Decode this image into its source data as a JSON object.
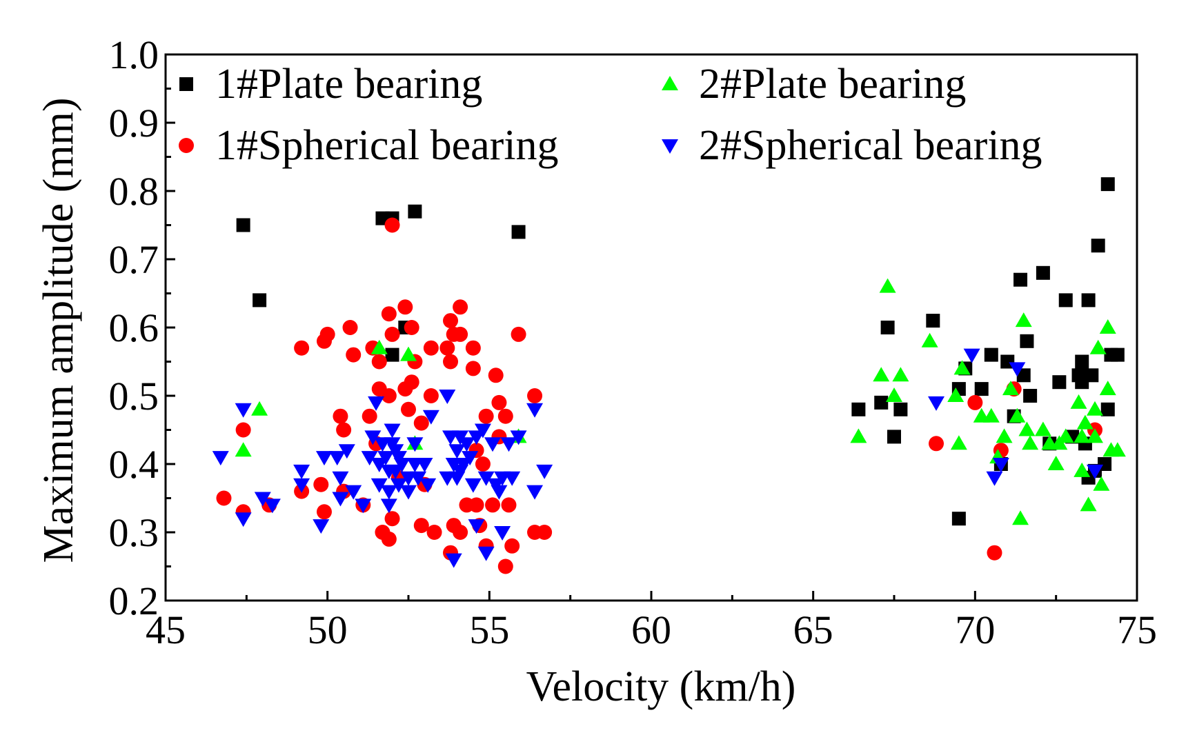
{
  "chart_data": {
    "type": "scatter",
    "title": "",
    "xlabel": "Velocity (km/h)",
    "ylabel": "Maximum amplitude (mm)",
    "xlim": [
      45,
      75
    ],
    "ylim": [
      0.2,
      1.0
    ],
    "xticks": [
      "45",
      "50",
      "55",
      "60",
      "65",
      "70",
      "75"
    ],
    "yticks": [
      "0.2",
      "0.3",
      "0.4",
      "0.5",
      "0.6",
      "0.7",
      "0.8",
      "0.9",
      "1.0"
    ],
    "grid": false,
    "legend_position": "top",
    "series": [
      {
        "name": "1#Plate bearing",
        "marker": "square",
        "color": "#000000",
        "points": [
          [
            47.4,
            0.75
          ],
          [
            47.9,
            0.64
          ],
          [
            51.7,
            0.76
          ],
          [
            52.0,
            0.76
          ],
          [
            52.7,
            0.77
          ],
          [
            55.9,
            0.74
          ],
          [
            52.4,
            0.6
          ],
          [
            52.0,
            0.56
          ],
          [
            66.4,
            0.48
          ],
          [
            67.1,
            0.49
          ],
          [
            67.3,
            0.6
          ],
          [
            67.5,
            0.44
          ],
          [
            67.7,
            0.48
          ],
          [
            68.7,
            0.61
          ],
          [
            69.5,
            0.32
          ],
          [
            69.5,
            0.51
          ],
          [
            69.7,
            0.54
          ],
          [
            70.2,
            0.51
          ],
          [
            70.5,
            0.56
          ],
          [
            70.8,
            0.4
          ],
          [
            71.0,
            0.55
          ],
          [
            71.2,
            0.47
          ],
          [
            71.4,
            0.67
          ],
          [
            71.5,
            0.53
          ],
          [
            71.6,
            0.58
          ],
          [
            71.7,
            0.5
          ],
          [
            72.1,
            0.68
          ],
          [
            72.3,
            0.43
          ],
          [
            72.6,
            0.52
          ],
          [
            72.8,
            0.64
          ],
          [
            73.0,
            0.44
          ],
          [
            73.2,
            0.53
          ],
          [
            73.3,
            0.55
          ],
          [
            73.3,
            0.52
          ],
          [
            73.4,
            0.43
          ],
          [
            73.5,
            0.64
          ],
          [
            73.5,
            0.38
          ],
          [
            73.6,
            0.53
          ],
          [
            73.7,
            0.39
          ],
          [
            73.8,
            0.72
          ],
          [
            74.0,
            0.4
          ],
          [
            74.1,
            0.81
          ],
          [
            74.1,
            0.48
          ],
          [
            74.2,
            0.56
          ],
          [
            74.4,
            0.56
          ]
        ]
      },
      {
        "name": "1#Spherical bearing",
        "marker": "circle",
        "color": "#ff0000",
        "points": [
          [
            46.8,
            0.35
          ],
          [
            47.4,
            0.45
          ],
          [
            47.4,
            0.33
          ],
          [
            48.2,
            0.34
          ],
          [
            49.2,
            0.57
          ],
          [
            49.2,
            0.36
          ],
          [
            49.8,
            0.37
          ],
          [
            49.9,
            0.58
          ],
          [
            49.9,
            0.33
          ],
          [
            50.0,
            0.59
          ],
          [
            50.4,
            0.47
          ],
          [
            50.5,
            0.45
          ],
          [
            50.5,
            0.36
          ],
          [
            50.7,
            0.6
          ],
          [
            50.8,
            0.56
          ],
          [
            51.1,
            0.34
          ],
          [
            51.3,
            0.47
          ],
          [
            51.4,
            0.57
          ],
          [
            51.5,
            0.43
          ],
          [
            51.6,
            0.55
          ],
          [
            51.6,
            0.51
          ],
          [
            51.7,
            0.3
          ],
          [
            51.9,
            0.62
          ],
          [
            51.9,
            0.5
          ],
          [
            51.9,
            0.29
          ],
          [
            52.0,
            0.75
          ],
          [
            52.0,
            0.59
          ],
          [
            52.0,
            0.32
          ],
          [
            52.2,
            0.38
          ],
          [
            52.4,
            0.63
          ],
          [
            52.4,
            0.51
          ],
          [
            52.5,
            0.48
          ],
          [
            52.6,
            0.52
          ],
          [
            52.6,
            0.6
          ],
          [
            52.7,
            0.55
          ],
          [
            52.9,
            0.46
          ],
          [
            52.9,
            0.31
          ],
          [
            53.0,
            0.37
          ],
          [
            53.2,
            0.57
          ],
          [
            53.2,
            0.5
          ],
          [
            53.3,
            0.3
          ],
          [
            53.7,
            0.57
          ],
          [
            53.8,
            0.61
          ],
          [
            53.8,
            0.55
          ],
          [
            53.8,
            0.27
          ],
          [
            53.9,
            0.59
          ],
          [
            53.9,
            0.31
          ],
          [
            54.1,
            0.63
          ],
          [
            54.1,
            0.59
          ],
          [
            54.1,
            0.3
          ],
          [
            54.3,
            0.34
          ],
          [
            54.5,
            0.57
          ],
          [
            54.5,
            0.54
          ],
          [
            54.6,
            0.42
          ],
          [
            54.6,
            0.34
          ],
          [
            54.7,
            0.31
          ],
          [
            54.8,
            0.4
          ],
          [
            54.9,
            0.47
          ],
          [
            54.9,
            0.28
          ],
          [
            55.1,
            0.34
          ],
          [
            55.2,
            0.53
          ],
          [
            55.3,
            0.49
          ],
          [
            55.3,
            0.44
          ],
          [
            55.5,
            0.47
          ],
          [
            55.5,
            0.25
          ],
          [
            55.6,
            0.34
          ],
          [
            55.7,
            0.28
          ],
          [
            55.9,
            0.59
          ],
          [
            56.4,
            0.5
          ],
          [
            56.4,
            0.3
          ],
          [
            56.7,
            0.3
          ],
          [
            68.8,
            0.43
          ],
          [
            70.0,
            0.49
          ],
          [
            70.6,
            0.27
          ],
          [
            70.8,
            0.42
          ],
          [
            71.2,
            0.51
          ],
          [
            73.7,
            0.45
          ]
        ]
      },
      {
        "name": "2#Plate bearing",
        "marker": "triangle-up",
        "color": "#00ff00",
        "points": [
          [
            47.4,
            0.42
          ],
          [
            47.9,
            0.48
          ],
          [
            51.6,
            0.57
          ],
          [
            52.5,
            0.56
          ],
          [
            52.7,
            0.43
          ],
          [
            55.9,
            0.44
          ],
          [
            66.4,
            0.44
          ],
          [
            67.1,
            0.53
          ],
          [
            67.3,
            0.66
          ],
          [
            67.5,
            0.5
          ],
          [
            67.7,
            0.53
          ],
          [
            68.6,
            0.58
          ],
          [
            69.4,
            0.5
          ],
          [
            69.5,
            0.43
          ],
          [
            69.6,
            0.54
          ],
          [
            70.2,
            0.47
          ],
          [
            70.5,
            0.47
          ],
          [
            70.7,
            0.41
          ],
          [
            70.9,
            0.44
          ],
          [
            71.1,
            0.51
          ],
          [
            71.3,
            0.47
          ],
          [
            71.4,
            0.32
          ],
          [
            71.5,
            0.61
          ],
          [
            71.6,
            0.45
          ],
          [
            71.7,
            0.43
          ],
          [
            72.1,
            0.45
          ],
          [
            72.3,
            0.43
          ],
          [
            72.5,
            0.4
          ],
          [
            72.6,
            0.43
          ],
          [
            72.8,
            0.44
          ],
          [
            73.2,
            0.49
          ],
          [
            73.3,
            0.44
          ],
          [
            73.3,
            0.39
          ],
          [
            73.4,
            0.46
          ],
          [
            73.5,
            0.34
          ],
          [
            73.7,
            0.48
          ],
          [
            73.7,
            0.44
          ],
          [
            73.8,
            0.57
          ],
          [
            73.9,
            0.37
          ],
          [
            74.1,
            0.6
          ],
          [
            74.1,
            0.51
          ],
          [
            74.2,
            0.42
          ],
          [
            74.4,
            0.42
          ]
        ]
      },
      {
        "name": "2#Spherical bearing",
        "marker": "triangle-down",
        "color": "#0000ff",
        "points": [
          [
            46.7,
            0.41
          ],
          [
            47.4,
            0.48
          ],
          [
            47.4,
            0.32
          ],
          [
            48.0,
            0.35
          ],
          [
            48.3,
            0.34
          ],
          [
            49.2,
            0.39
          ],
          [
            49.2,
            0.37
          ],
          [
            49.8,
            0.31
          ],
          [
            49.9,
            0.41
          ],
          [
            50.3,
            0.41
          ],
          [
            50.4,
            0.38
          ],
          [
            50.4,
            0.35
          ],
          [
            50.6,
            0.42
          ],
          [
            50.8,
            0.36
          ],
          [
            51.1,
            0.34
          ],
          [
            51.3,
            0.41
          ],
          [
            51.4,
            0.44
          ],
          [
            51.5,
            0.49
          ],
          [
            51.6,
            0.4
          ],
          [
            51.6,
            0.37
          ],
          [
            51.7,
            0.43
          ],
          [
            51.8,
            0.41
          ],
          [
            51.9,
            0.39
          ],
          [
            51.9,
            0.36
          ],
          [
            51.9,
            0.34
          ],
          [
            52.0,
            0.45
          ],
          [
            52.0,
            0.43
          ],
          [
            52.1,
            0.42
          ],
          [
            52.1,
            0.39
          ],
          [
            52.2,
            0.41
          ],
          [
            52.2,
            0.37
          ],
          [
            52.3,
            0.4
          ],
          [
            52.5,
            0.38
          ],
          [
            52.5,
            0.36
          ],
          [
            52.7,
            0.43
          ],
          [
            52.7,
            0.4
          ],
          [
            52.8,
            0.38
          ],
          [
            53.0,
            0.4
          ],
          [
            53.1,
            0.37
          ],
          [
            53.2,
            0.47
          ],
          [
            53.7,
            0.5
          ],
          [
            53.7,
            0.38
          ],
          [
            53.8,
            0.44
          ],
          [
            53.9,
            0.4
          ],
          [
            53.9,
            0.26
          ],
          [
            54.0,
            0.42
          ],
          [
            54.0,
            0.38
          ],
          [
            54.1,
            0.44
          ],
          [
            54.1,
            0.39
          ],
          [
            54.2,
            0.4
          ],
          [
            54.3,
            0.43
          ],
          [
            54.4,
            0.41
          ],
          [
            54.5,
            0.37
          ],
          [
            54.6,
            0.44
          ],
          [
            54.6,
            0.31
          ],
          [
            54.8,
            0.45
          ],
          [
            54.9,
            0.38
          ],
          [
            54.9,
            0.27
          ],
          [
            55.1,
            0.43
          ],
          [
            55.2,
            0.37
          ],
          [
            55.3,
            0.36
          ],
          [
            55.4,
            0.38
          ],
          [
            55.4,
            0.3
          ],
          [
            55.6,
            0.43
          ],
          [
            55.7,
            0.38
          ],
          [
            55.9,
            0.44
          ],
          [
            56.4,
            0.48
          ],
          [
            56.4,
            0.36
          ],
          [
            56.7,
            0.39
          ],
          [
            68.8,
            0.49
          ],
          [
            69.9,
            0.56
          ],
          [
            70.6,
            0.38
          ],
          [
            70.8,
            0.4
          ],
          [
            71.3,
            0.54
          ],
          [
            73.7,
            0.39
          ]
        ]
      }
    ]
  }
}
